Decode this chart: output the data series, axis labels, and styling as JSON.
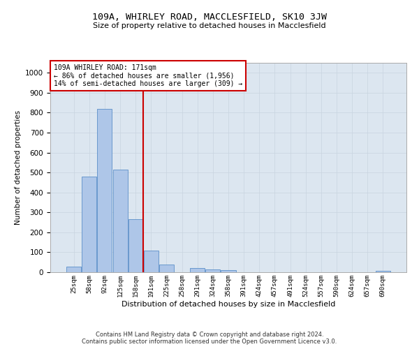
{
  "title": "109A, WHIRLEY ROAD, MACCLESFIELD, SK10 3JW",
  "subtitle": "Size of property relative to detached houses in Macclesfield",
  "xlabel": "Distribution of detached houses by size in Macclesfield",
  "ylabel": "Number of detached properties",
  "footer_line1": "Contains HM Land Registry data © Crown copyright and database right 2024.",
  "footer_line2": "Contains public sector information licensed under the Open Government Licence v3.0.",
  "categories": [
    "25sqm",
    "58sqm",
    "92sqm",
    "125sqm",
    "158sqm",
    "191sqm",
    "225sqm",
    "258sqm",
    "291sqm",
    "324sqm",
    "358sqm",
    "391sqm",
    "424sqm",
    "457sqm",
    "491sqm",
    "524sqm",
    "557sqm",
    "590sqm",
    "624sqm",
    "657sqm",
    "690sqm"
  ],
  "values": [
    28,
    478,
    820,
    515,
    265,
    110,
    40,
    0,
    20,
    15,
    10,
    0,
    0,
    0,
    0,
    0,
    0,
    0,
    0,
    0,
    8
  ],
  "bar_color": "#aec6e8",
  "bar_edge_color": "#5b8fc9",
  "annotation_line1": "109A WHIRLEY ROAD: 171sqm",
  "annotation_line2": "← 86% of detached houses are smaller (1,956)",
  "annotation_line3": "14% of semi-detached houses are larger (309) →",
  "annotation_box_color": "#ffffff",
  "annotation_box_edge_color": "#cc0000",
  "vline_color": "#cc0000",
  "vline_x_index": 5,
  "ylim": [
    0,
    1050
  ],
  "yticks": [
    0,
    100,
    200,
    300,
    400,
    500,
    600,
    700,
    800,
    900,
    1000
  ],
  "grid_color": "#c8d4e0",
  "bg_color": "#dce6f0"
}
